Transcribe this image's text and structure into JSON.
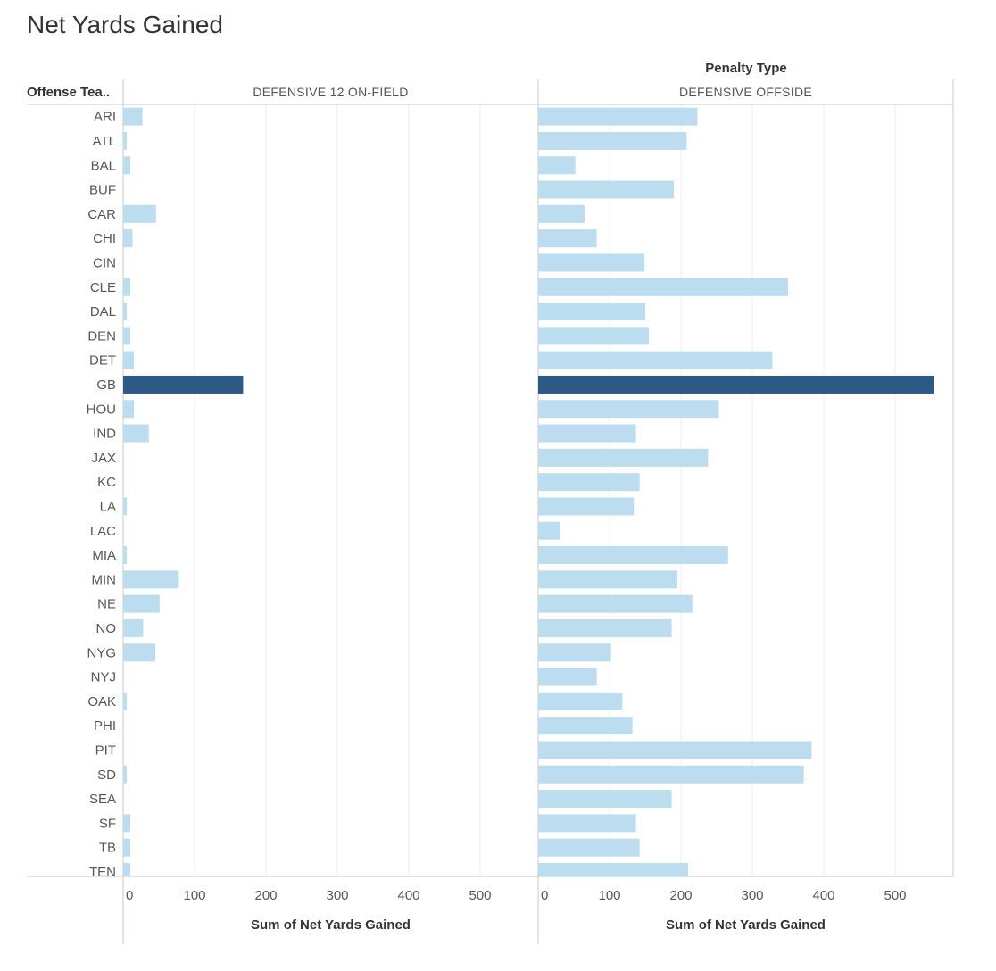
{
  "page": {
    "title": "Net Yards Gained"
  },
  "colors": {
    "bar": "#bcdcf0",
    "highlight": "#2c5985",
    "grid": "#eeeeee",
    "axis": "#c8c8c8"
  },
  "chart_data": {
    "type": "bar",
    "orientation": "horizontal",
    "column_header_title": "Penalty Type",
    "row_header_title": "Offense Tea..",
    "categories": [
      "ARI",
      "ATL",
      "BAL",
      "BUF",
      "CAR",
      "CHI",
      "CIN",
      "CLE",
      "DAL",
      "DEN",
      "DET",
      "GB",
      "HOU",
      "IND",
      "JAX",
      "KC",
      "LA",
      "LAC",
      "MIA",
      "MIN",
      "NE",
      "NO",
      "NYG",
      "NYJ",
      "OAK",
      "PHI",
      "PIT",
      "SD",
      "SEA",
      "SF",
      "TB",
      "TEN"
    ],
    "highlight_category": "GB",
    "xlabel": "Sum of Net Yards Gained",
    "xlim": [
      0,
      580
    ],
    "xticks": [
      0,
      100,
      200,
      300,
      400,
      500
    ],
    "grid": true,
    "series": [
      {
        "name": "DEFENSIVE 12 ON-FIELD",
        "values": [
          27,
          5,
          10,
          0,
          46,
          13,
          0,
          10,
          5,
          10,
          15,
          168,
          15,
          36,
          0,
          0,
          5,
          0,
          5,
          78,
          51,
          28,
          45,
          0,
          5,
          0,
          0,
          5,
          0,
          10,
          10,
          10
        ]
      },
      {
        "name": "DEFENSIVE OFFSIDE",
        "values": [
          223,
          208,
          52,
          190,
          65,
          82,
          149,
          350,
          150,
          155,
          328,
          555,
          253,
          137,
          238,
          142,
          134,
          31,
          266,
          195,
          216,
          187,
          102,
          82,
          118,
          132,
          383,
          372,
          187,
          137,
          142,
          210
        ]
      }
    ]
  }
}
